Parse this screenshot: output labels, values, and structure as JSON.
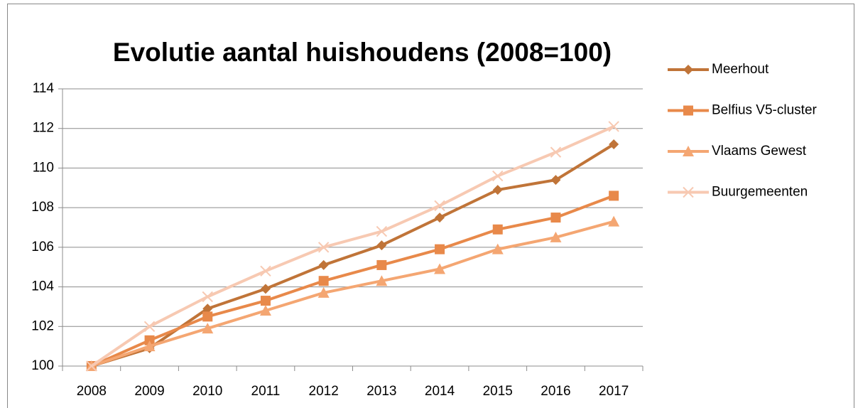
{
  "chart_data": {
    "type": "line",
    "title": "Evolutie aantal huishoudens (2008=100)",
    "categories": [
      "2008",
      "2009",
      "2010",
      "2011",
      "2012",
      "2013",
      "2014",
      "2015",
      "2016",
      "2017"
    ],
    "series": [
      {
        "name": "Meerhout",
        "color": "#c07438",
        "marker": "diamond",
        "values": [
          100,
          100.9,
          102.9,
          103.9,
          105.1,
          106.1,
          107.5,
          108.9,
          109.4,
          111.2
        ]
      },
      {
        "name": "Belfius V5-cluster",
        "color": "#e8894a",
        "marker": "square",
        "values": [
          100,
          101.3,
          102.5,
          103.3,
          104.3,
          105.1,
          105.9,
          106.9,
          107.5,
          108.6
        ]
      },
      {
        "name": "Vlaams Gewest",
        "color": "#f4a672",
        "marker": "triangle",
        "values": [
          100,
          101.0,
          101.9,
          102.8,
          103.7,
          104.3,
          104.9,
          105.9,
          106.5,
          107.3
        ]
      },
      {
        "name": "Buurgemeenten",
        "color": "#f7c9b2",
        "marker": "x",
        "values": [
          100,
          102.0,
          103.5,
          104.8,
          106.0,
          106.8,
          108.1,
          109.6,
          110.8,
          112.1
        ]
      }
    ],
    "ylim": [
      100,
      114
    ],
    "yticks": [
      100,
      102,
      104,
      106,
      108,
      110,
      112,
      114
    ],
    "grid": true,
    "legend": "right"
  }
}
